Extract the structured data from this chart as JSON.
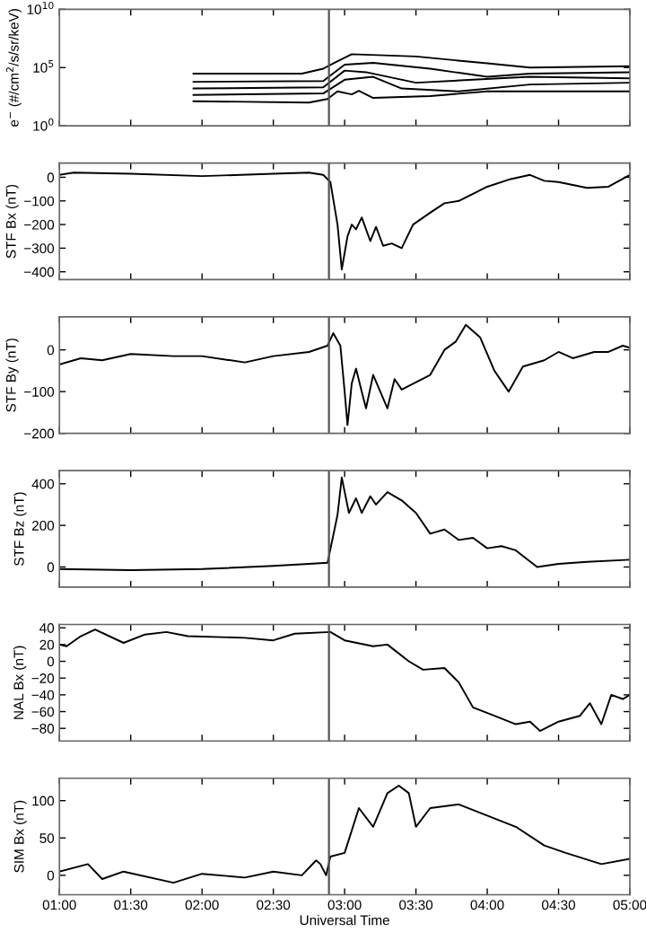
{
  "chart_data": [
    {
      "type": "line",
      "ylabel": "e$^{−}$ (#/cm$^{2}$/s/sr/keV)",
      "log": "y",
      "xlim": [
        1,
        5
      ],
      "ylim": [
        1,
        10000000000
      ],
      "yticks": [
        {
          "value": 1,
          "label": "10$^{0}$"
        },
        {
          "value": 100000,
          "label": "10$^{5}$"
        },
        {
          "value": 10000000000,
          "label": "10$^{10}$"
        }
      ],
      "xticks": [
        {
          "value": 1,
          "label": null
        },
        {
          "value": 1.5,
          "label": null
        },
        {
          "value": 2,
          "label": null
        },
        {
          "value": 2.5,
          "label": null
        },
        {
          "value": 3,
          "label": null
        },
        {
          "value": 3.5,
          "label": null
        },
        {
          "value": 4,
          "label": null
        },
        {
          "value": 4.5,
          "label": null
        },
        {
          "value": 5,
          "label": null
        }
      ],
      "tick_labels": "y",
      "ref_lines": [
        {
          "axis": "x",
          "value": 2.89,
          "color": "#555555"
        }
      ],
      "series": [
        {
          "color": "#000000",
          "x": [
            1.94,
            2.7,
            2.85,
            2.92,
            3.05,
            3.5,
            4.0,
            4.3,
            5.0
          ],
          "values": [
            30000,
            30000,
            80000,
            230000,
            1400000,
            900000,
            230000,
            100000,
            130000
          ]
        },
        {
          "color": "#000000",
          "x": [
            1.94,
            2.85,
            3.0,
            3.2,
            3.6,
            4.0,
            4.3,
            5.0
          ],
          "values": [
            6000,
            7000,
            180000,
            250000,
            80000,
            16000,
            30000,
            40000
          ]
        },
        {
          "color": "#000000",
          "x": [
            1.94,
            2.85,
            3.0,
            3.15,
            3.5,
            3.9,
            4.3,
            5.0
          ],
          "values": [
            1600,
            2000,
            55000,
            40000,
            5000,
            9000,
            16000,
            12000
          ]
        },
        {
          "color": "#000000",
          "x": [
            1.94,
            2.85,
            3.0,
            3.2,
            3.4,
            3.8,
            4.3,
            5.0
          ],
          "values": [
            450,
            600,
            9000,
            16000,
            1600,
            900,
            3500,
            5000
          ]
        },
        {
          "color": "#000000",
          "x": [
            1.94,
            2.75,
            2.88,
            2.95,
            3.05,
            3.1,
            3.2,
            3.6,
            4.0,
            4.5,
            5.0
          ],
          "values": [
            130,
            100,
            200,
            900,
            500,
            1000,
            250,
            360,
            900,
            900,
            900
          ]
        }
      ]
    },
    {
      "type": "line",
      "ylabel": "STF Bx (nT)",
      "xlim": [
        1,
        5
      ],
      "ylim": [
        -433,
        60
      ],
      "yticks": [
        -400,
        -300,
        -200,
        -100,
        0
      ],
      "xticks": [
        {
          "value": 1,
          "label": null
        },
        {
          "value": 1.5,
          "label": null
        },
        {
          "value": 2,
          "label": null
        },
        {
          "value": 2.5,
          "label": null
        },
        {
          "value": 3,
          "label": null
        },
        {
          "value": 3.5,
          "label": null
        },
        {
          "value": 4,
          "label": null
        },
        {
          "value": 4.5,
          "label": null
        },
        {
          "value": 5,
          "label": null
        }
      ],
      "tick_labels": "y",
      "ref_lines": [
        {
          "axis": "x",
          "value": 2.89,
          "color": "#555555"
        }
      ],
      "series": [
        {
          "color": "#000000",
          "x": [
            1.0,
            1.1,
            1.5,
            2.0,
            2.5,
            2.75,
            2.85,
            2.9,
            2.95,
            2.98,
            3.02,
            3.05,
            3.08,
            3.12,
            3.18,
            3.22,
            3.27,
            3.33,
            3.4,
            3.48,
            3.6,
            3.7,
            3.8,
            3.9,
            4.0,
            4.15,
            4.3,
            4.4,
            4.5,
            4.7,
            4.85,
            5.0
          ],
          "values": [
            10,
            20,
            15,
            5,
            15,
            20,
            10,
            -20,
            -200,
            -390,
            -250,
            -200,
            -220,
            -170,
            -270,
            -210,
            -290,
            -280,
            -300,
            -200,
            -150,
            -110,
            -100,
            -70,
            -40,
            -10,
            10,
            -15,
            -20,
            -45,
            -40,
            10
          ]
        }
      ]
    },
    {
      "type": "line",
      "ylabel": "STF By (nT)",
      "xlim": [
        1,
        5
      ],
      "ylim": [
        -200,
        79
      ],
      "yticks": [
        -200,
        -100,
        0
      ],
      "xticks": [
        {
          "value": 1,
          "label": null
        },
        {
          "value": 1.5,
          "label": null
        },
        {
          "value": 2,
          "label": null
        },
        {
          "value": 2.5,
          "label": null
        },
        {
          "value": 3,
          "label": null
        },
        {
          "value": 3.5,
          "label": null
        },
        {
          "value": 4,
          "label": null
        },
        {
          "value": 4.5,
          "label": null
        },
        {
          "value": 5,
          "label": null
        }
      ],
      "tick_labels": "y",
      "ref_lines": [
        {
          "axis": "x",
          "value": 2.89,
          "color": "#555555"
        }
      ],
      "series": [
        {
          "color": "#000000",
          "x": [
            1.0,
            1.15,
            1.3,
            1.5,
            1.8,
            2.0,
            2.3,
            2.5,
            2.75,
            2.88,
            2.92,
            2.97,
            3.0,
            3.02,
            3.05,
            3.08,
            3.12,
            3.15,
            3.2,
            3.25,
            3.3,
            3.35,
            3.4,
            3.6,
            3.7,
            3.78,
            3.85,
            3.95,
            4.05,
            4.15,
            4.25,
            4.4,
            4.5,
            4.6,
            4.75,
            4.85,
            4.95,
            5.0
          ],
          "values": [
            -35,
            -20,
            -25,
            -10,
            -15,
            -15,
            -30,
            -15,
            -5,
            10,
            40,
            10,
            -100,
            -180,
            -80,
            -45,
            -100,
            -140,
            -60,
            -100,
            -140,
            -70,
            -95,
            -60,
            0,
            20,
            60,
            30,
            -50,
            -100,
            -40,
            -25,
            -5,
            -20,
            -5,
            -5,
            10,
            5
          ]
        }
      ]
    },
    {
      "type": "line",
      "ylabel": "STF Bz (nT)",
      "xlim": [
        1,
        5
      ],
      "ylim": [
        -97,
        463
      ],
      "yticks": [
        0,
        200,
        400
      ],
      "xticks": [
        {
          "value": 1,
          "label": null
        },
        {
          "value": 1.5,
          "label": null
        },
        {
          "value": 2,
          "label": null
        },
        {
          "value": 2.5,
          "label": null
        },
        {
          "value": 3,
          "label": null
        },
        {
          "value": 3.5,
          "label": null
        },
        {
          "value": 4,
          "label": null
        },
        {
          "value": 4.5,
          "label": null
        },
        {
          "value": 5,
          "label": null
        }
      ],
      "tick_labels": "y",
      "ref_lines": [
        {
          "axis": "x",
          "value": 2.89,
          "color": "#555555"
        }
      ],
      "series": [
        {
          "color": "#000000",
          "x": [
            1.0,
            1.5,
            2.0,
            2.5,
            2.75,
            2.88,
            2.95,
            2.98,
            3.03,
            3.08,
            3.12,
            3.18,
            3.22,
            3.3,
            3.4,
            3.5,
            3.6,
            3.7,
            3.8,
            3.9,
            4.0,
            4.1,
            4.2,
            4.35,
            4.5,
            4.7,
            5.0
          ],
          "values": [
            -10,
            -15,
            -10,
            5,
            15,
            20,
            250,
            430,
            260,
            330,
            260,
            340,
            300,
            360,
            320,
            260,
            160,
            180,
            130,
            140,
            90,
            100,
            80,
            0,
            15,
            25,
            35
          ]
        }
      ]
    },
    {
      "type": "line",
      "ylabel": "NAL Bx (nT)",
      "xlim": [
        1,
        5
      ],
      "ylim": [
        -95,
        44
      ],
      "yticks": [
        -80,
        -60,
        -40,
        -20,
        0,
        20,
        40
      ],
      "xticks": [
        {
          "value": 1,
          "label": null
        },
        {
          "value": 1.5,
          "label": null
        },
        {
          "value": 2,
          "label": null
        },
        {
          "value": 2.5,
          "label": null
        },
        {
          "value": 3,
          "label": null
        },
        {
          "value": 3.5,
          "label": null
        },
        {
          "value": 4,
          "label": null
        },
        {
          "value": 4.5,
          "label": null
        },
        {
          "value": 5,
          "label": null
        }
      ],
      "tick_labels": "y",
      "ref_lines": [
        {
          "axis": "x",
          "value": 2.89,
          "color": "#555555"
        }
      ],
      "series": [
        {
          "color": "#000000",
          "x": [
            1.0,
            1.05,
            1.15,
            1.25,
            1.45,
            1.6,
            1.75,
            1.9,
            2.3,
            2.5,
            2.65,
            2.9,
            3.0,
            3.2,
            3.3,
            3.45,
            3.55,
            3.7,
            3.8,
            3.9,
            4.05,
            4.2,
            4.3,
            4.37,
            4.5,
            4.65,
            4.72,
            4.8,
            4.87,
            4.95,
            5.0
          ],
          "values": [
            20,
            18,
            30,
            38,
            22,
            32,
            35,
            30,
            28,
            25,
            33,
            35,
            25,
            18,
            20,
            0,
            -10,
            -8,
            -25,
            -55,
            -65,
            -75,
            -72,
            -83,
            -72,
            -65,
            -50,
            -75,
            -40,
            -45,
            -40
          ]
        }
      ]
    },
    {
      "type": "line",
      "ylabel": "SIM Bx (nT)",
      "xlabel": "Universal Time",
      "xlim": [
        1,
        5
      ],
      "ylim": [
        -26,
        130
      ],
      "yticks": [
        0,
        50,
        100
      ],
      "xticks": [
        {
          "value": 1,
          "label": "01:00"
        },
        {
          "value": 1.5,
          "label": "01:30"
        },
        {
          "value": 2,
          "label": "02:00"
        },
        {
          "value": 2.5,
          "label": "02:30"
        },
        {
          "value": 3,
          "label": "03:00"
        },
        {
          "value": 3.5,
          "label": "03:30"
        },
        {
          "value": 4,
          "label": "04:00"
        },
        {
          "value": 4.5,
          "label": "04:30"
        },
        {
          "value": 5,
          "label": "05:00"
        }
      ],
      "ref_lines": [
        {
          "axis": "x",
          "value": 2.89,
          "color": "#555555"
        }
      ],
      "series": [
        {
          "color": "#000000",
          "x": [
            1.0,
            1.2,
            1.3,
            1.45,
            1.8,
            2.0,
            2.3,
            2.5,
            2.7,
            2.8,
            2.83,
            2.87,
            2.9,
            3.0,
            3.1,
            3.2,
            3.3,
            3.38,
            3.45,
            3.5,
            3.6,
            3.8,
            4.0,
            4.2,
            4.4,
            4.55,
            4.8,
            5.0
          ],
          "values": [
            5,
            15,
            -5,
            5,
            -10,
            2,
            -3,
            5,
            0,
            20,
            15,
            0,
            25,
            30,
            90,
            65,
            110,
            120,
            110,
            65,
            90,
            95,
            80,
            65,
            40,
            30,
            15,
            22
          ]
        }
      ]
    }
  ]
}
